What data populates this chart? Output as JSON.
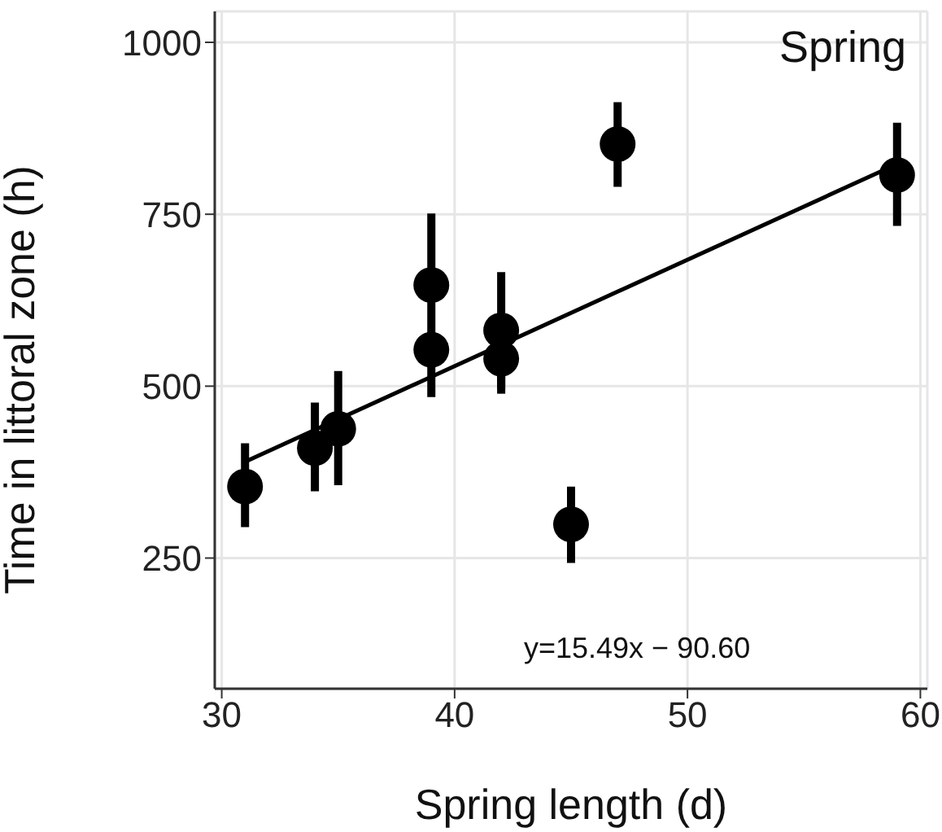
{
  "chart_data": {
    "type": "scatter",
    "xlabel": "Spring length (d)",
    "ylabel": "Time in littoral zone (h)",
    "annotations": [
      "Spring",
      "y=15.49x − 90.60"
    ],
    "xlim": [
      29.7,
      60.3
    ],
    "ylim": [
      60,
      1045
    ],
    "xticks": [
      30,
      40,
      50,
      60
    ],
    "yticks": [
      250,
      500,
      750,
      1000
    ],
    "grid": true,
    "legend": false,
    "series": [
      {
        "marker": "circle",
        "color": "#000000",
        "x": [
          31,
          34,
          35,
          39,
          39,
          42,
          42,
          45,
          47,
          59
        ],
        "values": [
          354,
          410,
          438,
          647,
          553,
          581,
          540,
          299,
          852,
          807
        ],
        "errors": [
          [
            295,
            417
          ],
          [
            347,
            476
          ],
          [
            356,
            522
          ],
          [
            647,
            751
          ],
          [
            484,
            622
          ],
          [
            495,
            666
          ],
          [
            489,
            540
          ],
          [
            243,
            354
          ],
          [
            790,
            913
          ],
          [
            733,
            883
          ]
        ]
      },
      {
        "type": "line",
        "marker": "none",
        "color": "#000000",
        "x": [
          31,
          59
        ],
        "values": [
          390,
          823
        ]
      }
    ]
  }
}
